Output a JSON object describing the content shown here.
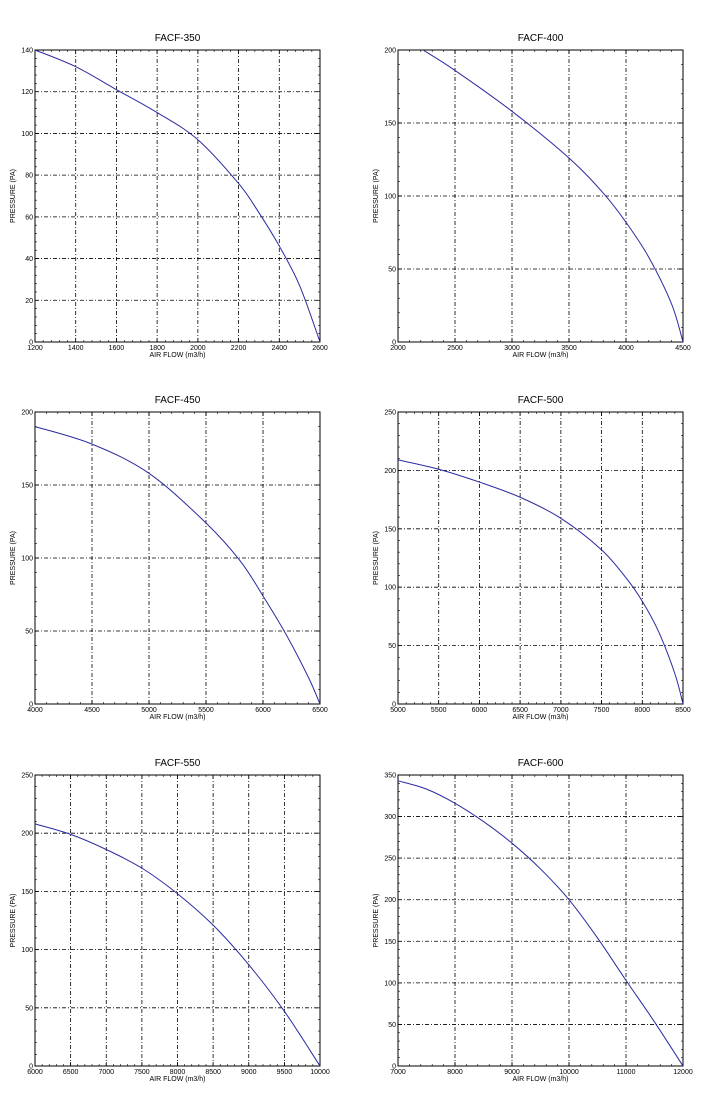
{
  "chart_data": [
    {
      "type": "line",
      "title": "FACF-350",
      "xlabel": "AIR FLOW (m3/h)",
      "ylabel": "PRESSURE (PA)",
      "xlim": [
        1200,
        2600
      ],
      "ylim": [
        0,
        140
      ],
      "xticks": [
        1200,
        1400,
        1600,
        1800,
        2000,
        2200,
        2400,
        2600
      ],
      "yticks": [
        0,
        20,
        40,
        60,
        80,
        100,
        120,
        140
      ],
      "grid": true,
      "series": [
        {
          "color": "#2b2ba0",
          "x": [
            1200,
            1400,
            1600,
            1800,
            2000,
            2200,
            2300,
            2400,
            2500,
            2600
          ],
          "y": [
            140,
            132,
            121,
            110,
            97,
            76,
            62,
            46,
            27,
            0
          ]
        }
      ]
    },
    {
      "type": "line",
      "title": "FACF-400",
      "xlabel": "AIR FLOW (m3/h)",
      "ylabel": "PRESSURE (PA)",
      "xlim": [
        2000,
        4500
      ],
      "ylim": [
        0,
        200
      ],
      "xticks": [
        2000,
        2500,
        3000,
        3500,
        4000,
        4500
      ],
      "yticks": [
        0,
        50,
        100,
        150,
        200
      ],
      "grid": true,
      "series": [
        {
          "color": "#2b2ba0",
          "x": [
            2220,
            2500,
            3000,
            3500,
            3800,
            4000,
            4200,
            4400,
            4500
          ],
          "y": [
            200,
            186,
            158,
            126,
            102,
            82,
            58,
            26,
            0
          ]
        }
      ]
    },
    {
      "type": "line",
      "title": "FACF-450",
      "xlabel": "AIR FLOW (m3/h)",
      "ylabel": "PRESSURE (PA)",
      "xlim": [
        4000,
        6500
      ],
      "ylim": [
        0,
        200
      ],
      "xticks": [
        4000,
        4500,
        5000,
        5500,
        6000,
        6500
      ],
      "yticks": [
        0,
        50,
        100,
        150,
        200
      ],
      "grid": true,
      "series": [
        {
          "color": "#2b2ba0",
          "x": [
            4000,
            4500,
            5000,
            5500,
            5800,
            6000,
            6200,
            6400,
            6500
          ],
          "y": [
            190,
            178,
            158,
            124,
            98,
            74,
            48,
            18,
            0
          ]
        }
      ]
    },
    {
      "type": "line",
      "title": "FACF-500",
      "xlabel": "AIR FLOW (m3/h)",
      "ylabel": "PRESSURE (PA)",
      "xlim": [
        5000,
        8500
      ],
      "ylim": [
        0,
        250
      ],
      "xticks": [
        5000,
        5500,
        6000,
        6500,
        7000,
        7500,
        8000,
        8500
      ],
      "yticks": [
        0,
        50,
        100,
        150,
        200,
        250
      ],
      "grid": true,
      "series": [
        {
          "color": "#2b2ba0",
          "x": [
            5000,
            5500,
            6000,
            6500,
            7000,
            7500,
            7800,
            8000,
            8200,
            8400,
            8500
          ],
          "y": [
            209,
            201,
            190,
            177,
            159,
            132,
            108,
            88,
            62,
            26,
            0
          ]
        }
      ]
    },
    {
      "type": "line",
      "title": "FACF-550",
      "xlabel": "AIR FLOW (m3/h)",
      "ylabel": "PRESSURE (PA)",
      "xlim": [
        6000,
        10000
      ],
      "ylim": [
        0,
        250
      ],
      "xticks": [
        6000,
        6500,
        7000,
        7500,
        8000,
        8500,
        9000,
        9500,
        10000
      ],
      "yticks": [
        0,
        50,
        100,
        150,
        200,
        250
      ],
      "grid": true,
      "series": [
        {
          "color": "#2b2ba0",
          "x": [
            6000,
            6500,
            7000,
            7500,
            8000,
            8500,
            9000,
            9500,
            10000
          ],
          "y": [
            208,
            199,
            186,
            170,
            148,
            121,
            87,
            47,
            0
          ]
        }
      ]
    },
    {
      "type": "line",
      "title": "FACF-600",
      "xlabel": "AIR FLOW (m3/h)",
      "ylabel": "PRESSURE (PA)",
      "xlim": [
        7000,
        12000
      ],
      "ylim": [
        0,
        350
      ],
      "xticks": [
        7000,
        8000,
        9000,
        10000,
        11000,
        12000
      ],
      "yticks": [
        0,
        50,
        100,
        150,
        200,
        250,
        300,
        350
      ],
      "grid": true,
      "series": [
        {
          "color": "#2b2ba0",
          "x": [
            7000,
            7500,
            8000,
            8500,
            9000,
            9500,
            10000,
            10500,
            11000,
            11500,
            12000
          ],
          "y": [
            343,
            333,
            316,
            294,
            268,
            237,
            200,
            154,
            103,
            53,
            0
          ]
        }
      ]
    }
  ]
}
